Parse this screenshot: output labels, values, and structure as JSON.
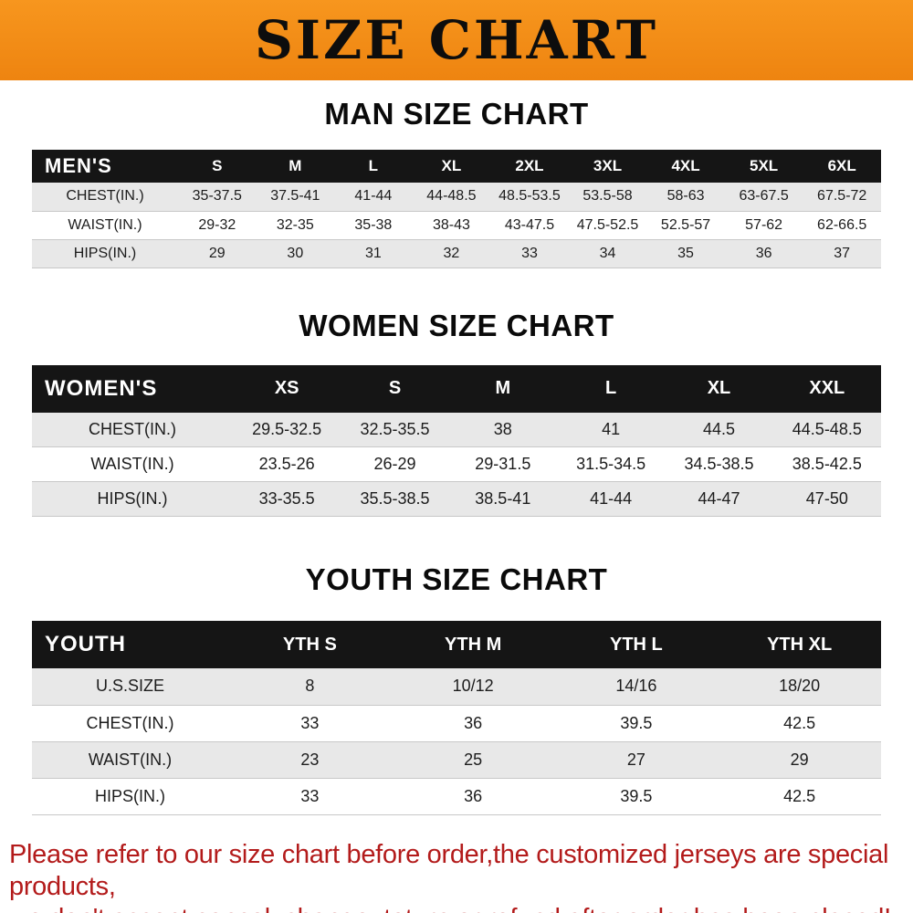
{
  "banner": {
    "title": "SIZE CHART"
  },
  "chart_data": [
    {
      "type": "table",
      "title": "MAN SIZE CHART",
      "header_label": "MEN'S",
      "columns": [
        "S",
        "M",
        "L",
        "XL",
        "2XL",
        "3XL",
        "4XL",
        "5XL",
        "6XL"
      ],
      "rows": [
        {
          "label": "CHEST(IN.)",
          "values": [
            "35-37.5",
            "37.5-41",
            "41-44",
            "44-48.5",
            "48.5-53.5",
            "53.5-58",
            "58-63",
            "63-67.5",
            "67.5-72"
          ]
        },
        {
          "label": "WAIST(IN.)",
          "values": [
            "29-32",
            "32-35",
            "35-38",
            "38-43",
            "43-47.5",
            "47.5-52.5",
            "52.5-57",
            "57-62",
            "62-66.5"
          ]
        },
        {
          "label": "HIPS(IN.)",
          "values": [
            "29",
            "30",
            "31",
            "32",
            "33",
            "34",
            "35",
            "36",
            "37"
          ]
        }
      ]
    },
    {
      "type": "table",
      "title": "WOMEN SIZE CHART",
      "header_label": "WOMEN'S",
      "columns": [
        "XS",
        "S",
        "M",
        "L",
        "XL",
        "XXL"
      ],
      "rows": [
        {
          "label": "CHEST(IN.)",
          "values": [
            "29.5-32.5",
            "32.5-35.5",
            "38",
            "41",
            "44.5",
            "44.5-48.5"
          ]
        },
        {
          "label": "WAIST(IN.)",
          "values": [
            "23.5-26",
            "26-29",
            "29-31.5",
            "31.5-34.5",
            "34.5-38.5",
            "38.5-42.5"
          ]
        },
        {
          "label": "HIPS(IN.)",
          "values": [
            "33-35.5",
            "35.5-38.5",
            "38.5-41",
            "41-44",
            "44-47",
            "47-50"
          ]
        }
      ]
    },
    {
      "type": "table",
      "title": "YOUTH SIZE CHART",
      "header_label": "YOUTH",
      "columns": [
        "YTH S",
        "YTH M",
        "YTH L",
        "YTH XL"
      ],
      "rows": [
        {
          "label": "U.S.SIZE",
          "values": [
            "8",
            "10/12",
            "14/16",
            "18/20"
          ]
        },
        {
          "label": "CHEST(IN.)",
          "values": [
            "33",
            "36",
            "39.5",
            "42.5"
          ]
        },
        {
          "label": "WAIST(IN.)",
          "values": [
            "23",
            "25",
            "27",
            "29"
          ]
        },
        {
          "label": "HIPS(IN.)",
          "values": [
            "33",
            "36",
            "39.5",
            "42.5"
          ]
        }
      ]
    }
  ],
  "footer": {
    "lines": [
      "Please refer to our size chart before order,the customized jerseys are special products,",
      "we don't accept cancel, change, teturn or refund after order has been placed!"
    ]
  },
  "colors": {
    "banner_orange": "#f7961e",
    "banner_orange_dark": "#ee8410",
    "header_black": "#151515",
    "row_gray": "#e8e8e8",
    "footer_red": "#b31b1b"
  }
}
